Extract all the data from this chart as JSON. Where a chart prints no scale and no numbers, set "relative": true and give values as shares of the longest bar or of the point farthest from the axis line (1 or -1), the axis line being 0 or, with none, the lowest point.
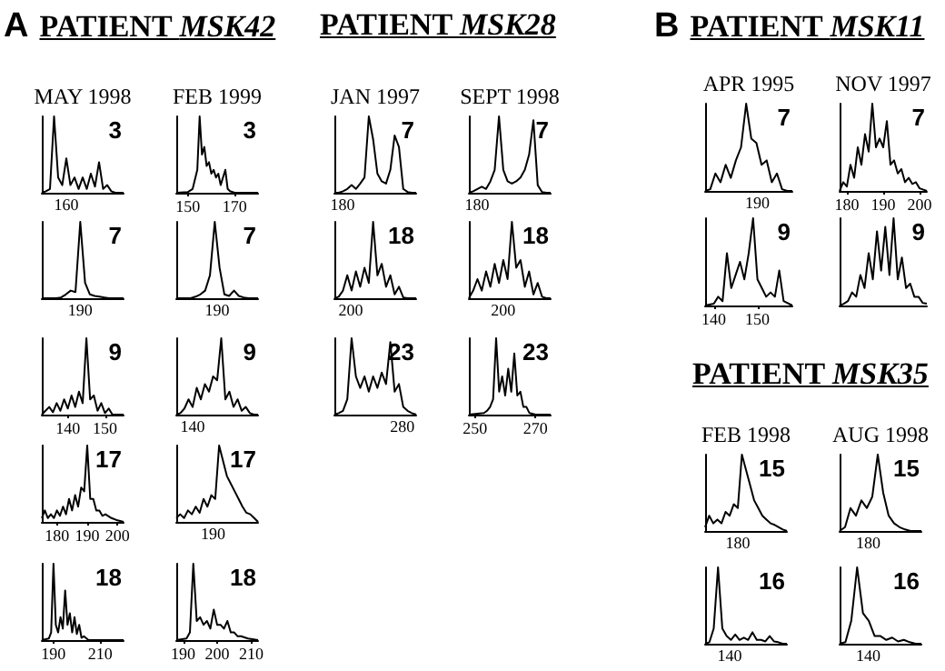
{
  "chart_data": [
    {
      "type": "other",
      "title": "PATIENT MSK42",
      "annotations": [
        "A"
      ]
    },
    {
      "type": "other",
      "title": "PATIENT MSK28"
    },
    {
      "type": "other",
      "title": "PATIENT MSK11",
      "annotations": [
        "B"
      ]
    },
    {
      "type": "line",
      "title": "MAY 1998",
      "annotations": [
        "3",
        "160"
      ],
      "relative": true,
      "tick_labels": false,
      "color": "#000000",
      "categories": [
        null,
        null,
        null,
        null,
        null,
        null,
        null,
        null,
        null,
        null,
        null,
        null,
        null,
        null,
        null,
        null,
        null,
        null,
        null,
        null,
        null
      ],
      "values": [
        0,
        0.02,
        0.05,
        1,
        0.2,
        0.1,
        0.45,
        0.1,
        0.2,
        0.05,
        0.2,
        0.05,
        0.25,
        0.08,
        0.4,
        0.05,
        0.1,
        0.02,
        0,
        0,
        0
      ]
    },
    {
      "type": "line",
      "title": "FEB 1999",
      "annotations": [
        "3"
      ],
      "relative": true,
      "tick_labels": "x",
      "color": "#000000",
      "xlim": [
        145,
        180
      ],
      "xticks": [
        150,
        170
      ],
      "x": [
        145,
        150,
        152,
        154,
        155,
        156,
        157,
        158,
        159,
        160,
        161,
        162,
        163,
        164,
        166,
        167,
        168,
        170,
        180
      ],
      "values": [
        0,
        0.01,
        0.05,
        0.3,
        1,
        0.5,
        0.6,
        0.35,
        0.4,
        0.25,
        0.3,
        0.2,
        0.25,
        0.1,
        0.3,
        0.05,
        0.02,
        0,
        0
      ]
    },
    {
      "type": "line",
      "title": "JAN 1997",
      "annotations": [
        "7",
        "180"
      ],
      "relative": true,
      "tick_labels": false,
      "color": "#000000",
      "categories": [
        null,
        null,
        null,
        null,
        null,
        null,
        null,
        null,
        null,
        null,
        null,
        null,
        null,
        null,
        null,
        null,
        null,
        null,
        null,
        null
      ],
      "values": [
        0,
        0,
        0.02,
        0.05,
        0.1,
        0.05,
        0.12,
        0.2,
        1,
        0.7,
        0.25,
        0.15,
        0.12,
        0.3,
        0.75,
        0.6,
        0.05,
        0.01,
        0,
        0
      ]
    },
    {
      "type": "line",
      "title": "SEPT 1998",
      "annotations": [
        "7",
        "180"
      ],
      "relative": true,
      "tick_labels": false,
      "color": "#000000",
      "categories": [
        null,
        null,
        null,
        null,
        null,
        null,
        null,
        null,
        null,
        null,
        null,
        null,
        null,
        null,
        null,
        null,
        null,
        null,
        null,
        null
      ],
      "values": [
        0,
        0.02,
        0.05,
        0.08,
        0.05,
        0.15,
        0.3,
        1,
        0.3,
        0.15,
        0.12,
        0.15,
        0.2,
        0.3,
        0.5,
        0.95,
        0.1,
        0.01,
        0,
        0
      ]
    },
    {
      "type": "line",
      "annotations": [
        "7",
        "190"
      ],
      "relative": true,
      "tick_labels": false,
      "color": "#000000",
      "categories": [
        null,
        null,
        null,
        null,
        null,
        null,
        null,
        null,
        null,
        null,
        null,
        null,
        null,
        null,
        null,
        null,
        null,
        null
      ],
      "values": [
        0,
        0,
        0,
        0,
        0.01,
        0.05,
        0.1,
        0.08,
        1,
        0.2,
        0.05,
        0.03,
        0.02,
        0.01,
        0,
        0,
        0,
        0
      ]
    },
    {
      "type": "line",
      "annotations": [
        "7",
        "190"
      ],
      "relative": true,
      "tick_labels": false,
      "color": "#000000",
      "categories": [
        null,
        null,
        null,
        null,
        null,
        null,
        null,
        null,
        null,
        null,
        null,
        null,
        null,
        null,
        null,
        null,
        null,
        null
      ],
      "values": [
        0,
        0,
        0,
        0,
        0.02,
        0.05,
        0.1,
        0.3,
        1,
        0.4,
        0.05,
        0.03,
        0.1,
        0.03,
        0.01,
        0,
        0,
        0
      ]
    },
    {
      "type": "line",
      "annotations": [
        "18",
        "200"
      ],
      "relative": true,
      "tick_labels": false,
      "color": "#000000",
      "categories": [
        null,
        null,
        null,
        null,
        null,
        null,
        null,
        null,
        null,
        null,
        null,
        null,
        null,
        null,
        null,
        null,
        null,
        null,
        null,
        null
      ],
      "values": [
        0,
        0.02,
        0.1,
        0.3,
        0.1,
        0.35,
        0.15,
        0.4,
        0.2,
        1,
        0.3,
        0.45,
        0.15,
        0.3,
        0.05,
        0.15,
        0.01,
        0,
        0,
        0
      ]
    },
    {
      "type": "line",
      "annotations": [
        "18",
        "200"
      ],
      "relative": true,
      "tick_labels": false,
      "color": "#000000",
      "categories": [
        null,
        null,
        null,
        null,
        null,
        null,
        null,
        null,
        null,
        null,
        null,
        null,
        null,
        null,
        null,
        null,
        null,
        null,
        null,
        null
      ],
      "values": [
        0,
        0.1,
        0.25,
        0.1,
        0.35,
        0.15,
        0.45,
        0.2,
        0.5,
        0.25,
        1,
        0.4,
        0.5,
        0.15,
        0.35,
        0.05,
        0.2,
        0.02,
        0,
        0
      ]
    },
    {
      "type": "line",
      "annotations": [
        "9"
      ],
      "relative": true,
      "tick_labels": "x",
      "color": "#000000",
      "xlim": [
        133,
        155
      ],
      "xticks": [
        140,
        150
      ],
      "x": [
        133,
        134,
        135,
        136,
        137,
        138,
        139,
        140,
        141,
        142,
        143,
        144,
        145,
        146,
        147,
        148,
        149,
        150,
        151,
        152,
        155
      ],
      "values": [
        0,
        0.05,
        0.1,
        0.03,
        0.15,
        0.05,
        0.2,
        0.08,
        0.25,
        0.1,
        0.3,
        0.15,
        1,
        0.2,
        0.25,
        0.05,
        0.15,
        0.02,
        0.08,
        0,
        0
      ]
    },
    {
      "type": "line",
      "annotations": [
        "9",
        "140"
      ],
      "relative": true,
      "tick_labels": false,
      "color": "#000000",
      "categories": [
        null,
        null,
        null,
        null,
        null,
        null,
        null,
        null,
        null,
        null,
        null,
        null,
        null,
        null,
        null,
        null,
        null,
        null,
        null,
        null,
        null
      ],
      "values": [
        0,
        0.02,
        0.08,
        0.2,
        0.1,
        0.35,
        0.2,
        0.4,
        0.3,
        0.5,
        0.45,
        1,
        0.2,
        0.3,
        0.1,
        0.2,
        0.05,
        0.1,
        0.02,
        0,
        0
      ]
    },
    {
      "type": "line",
      "annotations": [
        "23",
        "280"
      ],
      "relative": true,
      "tick_labels": false,
      "color": "#000000",
      "categories": [
        null,
        null,
        null,
        null,
        null,
        null,
        null,
        null,
        null,
        null,
        null,
        null,
        null,
        null,
        null,
        null,
        null,
        null,
        null,
        null
      ],
      "values": [
        0,
        0.02,
        0.05,
        0.2,
        1,
        0.5,
        0.35,
        0.5,
        0.3,
        0.5,
        0.35,
        0.55,
        0.4,
        0.95,
        0.3,
        0.4,
        0.1,
        0.05,
        0.02,
        0
      ]
    },
    {
      "type": "line",
      "annotations": [
        "23"
      ],
      "relative": true,
      "tick_labels": "x",
      "color": "#000000",
      "xlim": [
        248,
        275
      ],
      "xticks": [
        250,
        270
      ],
      "x": [
        248,
        253,
        254,
        255,
        256,
        257,
        258,
        259,
        260,
        261,
        262,
        263,
        264,
        265,
        266,
        267,
        268,
        270,
        275
      ],
      "values": [
        0,
        0.02,
        0.05,
        0.1,
        0.2,
        1,
        0.3,
        0.5,
        0.25,
        0.6,
        0.3,
        0.8,
        0.25,
        0.3,
        0.1,
        0.1,
        0.02,
        0,
        0
      ]
    },
    {
      "type": "line",
      "annotations": [
        "17"
      ],
      "relative": true,
      "tick_labels": "x",
      "color": "#000000",
      "xlim": [
        175,
        202
      ],
      "xticks": [
        180,
        190,
        200
      ],
      "x": [
        175,
        176,
        177,
        178,
        179,
        180,
        181,
        182,
        183,
        184,
        185,
        186,
        187,
        188,
        189,
        190,
        191,
        192,
        193,
        194,
        195,
        196,
        198,
        200,
        202
      ],
      "values": [
        0.05,
        0.15,
        0.05,
        0.1,
        0.05,
        0.15,
        0.08,
        0.2,
        0.1,
        0.3,
        0.15,
        0.35,
        0.2,
        0.45,
        0.4,
        1,
        0.3,
        0.3,
        0.15,
        0.15,
        0.08,
        0.1,
        0.05,
        0.02,
        0
      ]
    },
    {
      "type": "line",
      "annotations": [
        "17",
        "190"
      ],
      "relative": true,
      "tick_labels": false,
      "color": "#000000",
      "categories": [
        null,
        null,
        null,
        null,
        null,
        null,
        null,
        null,
        null,
        null,
        null,
        null,
        null,
        null,
        null,
        null,
        null,
        null,
        null,
        null,
        null,
        null
      ],
      "values": [
        0.05,
        0.1,
        0.05,
        0.15,
        0.1,
        0.2,
        0.12,
        0.3,
        0.2,
        0.35,
        0.3,
        1,
        0.8,
        0.6,
        0.5,
        0.4,
        0.3,
        0.2,
        0.12,
        0.1,
        0.05,
        0
      ]
    },
    {
      "type": "line",
      "annotations": [
        "18"
      ],
      "relative": true,
      "tick_labels": "x",
      "color": "#000000",
      "xlim": [
        185,
        220
      ],
      "xticks": [
        190,
        210
      ],
      "x": [
        185,
        188,
        189,
        190,
        191,
        192,
        193,
        194,
        195,
        196,
        197,
        198,
        199,
        200,
        201,
        202,
        203,
        205,
        220
      ],
      "values": [
        0,
        0.02,
        0.1,
        1,
        0.2,
        0.1,
        0.3,
        0.15,
        0.65,
        0.2,
        0.35,
        0.1,
        0.3,
        0.08,
        0.2,
        0.03,
        0.05,
        0,
        0
      ]
    },
    {
      "type": "line",
      "annotations": [
        "18"
      ],
      "relative": true,
      "tick_labels": "x",
      "color": "#000000",
      "xlim": [
        188,
        212
      ],
      "xticks": [
        190,
        200,
        210
      ],
      "x": [
        188,
        191,
        192,
        193,
        194,
        195,
        196,
        197,
        198,
        199,
        200,
        201,
        202,
        203,
        204,
        205,
        206,
        207,
        209,
        212
      ],
      "values": [
        0,
        0.02,
        0.1,
        1,
        0.25,
        0.3,
        0.2,
        0.25,
        0.15,
        0.4,
        0.2,
        0.2,
        0.15,
        0.25,
        0.1,
        0.1,
        0.05,
        0.05,
        0.02,
        0
      ]
    },
    {
      "type": "line",
      "title": "APR 1995",
      "annotations": [
        "7",
        "190"
      ],
      "relative": true,
      "tick_labels": false,
      "color": "#000000",
      "categories": [
        null,
        null,
        null,
        null,
        null,
        null,
        null,
        null,
        null,
        null,
        null,
        null,
        null,
        null,
        null,
        null,
        null,
        null
      ],
      "values": [
        0,
        0.02,
        0.2,
        0.1,
        0.3,
        0.15,
        0.35,
        0.5,
        1,
        0.6,
        0.55,
        0.3,
        0.35,
        0.1,
        0.2,
        0.02,
        0,
        0
      ]
    },
    {
      "type": "line",
      "title": "NOV 1997",
      "annotations": [
        "7"
      ],
      "relative": true,
      "tick_labels": "x",
      "color": "#000000",
      "xlim": [
        178,
        202
      ],
      "xticks": [
        180,
        190,
        200
      ],
      "x": [
        178,
        179,
        180,
        181,
        182,
        183,
        184,
        185,
        186,
        187,
        188,
        189,
        190,
        191,
        192,
        193,
        194,
        195,
        196,
        197,
        198,
        199,
        200,
        202
      ],
      "values": [
        0,
        0.1,
        0.05,
        0.3,
        0.15,
        0.5,
        0.3,
        0.65,
        0.45,
        1,
        0.5,
        0.6,
        0.5,
        0.8,
        0.3,
        0.35,
        0.2,
        0.25,
        0.1,
        0.15,
        0.08,
        0.1,
        0.03,
        0
      ]
    },
    {
      "type": "line",
      "annotations": [
        "9"
      ],
      "relative": true,
      "tick_labels": "x",
      "color": "#000000",
      "xlim": [
        138,
        158
      ],
      "xticks": [
        140,
        150
      ],
      "x": [
        138,
        140,
        141,
        142,
        143,
        144,
        145,
        146,
        147,
        148,
        149,
        150,
        151,
        152,
        153,
        154,
        155,
        156,
        158
      ],
      "values": [
        0,
        0.02,
        0.1,
        0.05,
        0.6,
        0.2,
        0.35,
        0.5,
        0.3,
        0.6,
        1,
        0.3,
        0.2,
        0.1,
        0.15,
        0.1,
        0.4,
        0.05,
        0
      ]
    },
    {
      "type": "line",
      "annotations": [
        "9"
      ],
      "relative": true,
      "tick_labels": false,
      "color": "#000000",
      "categories": [
        null,
        null,
        null,
        null,
        null,
        null,
        null,
        null,
        null,
        null,
        null,
        null,
        null,
        null,
        null,
        null,
        null,
        null,
        null,
        null,
        null,
        null
      ],
      "values": [
        0,
        0.02,
        0.05,
        0.15,
        0.1,
        0.35,
        0.2,
        0.6,
        0.3,
        0.85,
        0.4,
        0.9,
        0.35,
        1,
        0.3,
        0.55,
        0.2,
        0.25,
        0.1,
        0.1,
        0.03,
        0.02
      ]
    },
    {
      "type": "other",
      "title": "PATIENT MSK35"
    },
    {
      "type": "line",
      "title": "FEB 1998",
      "annotations": [
        "15",
        "180"
      ],
      "relative": true,
      "tick_labels": false,
      "color": "#000000",
      "categories": [
        null,
        null,
        null,
        null,
        null,
        null,
        null,
        null,
        null,
        null,
        null,
        null,
        null,
        null,
        null,
        null,
        null,
        null,
        null,
        null,
        null
      ],
      "values": [
        0.05,
        0.2,
        0.1,
        0.15,
        0.1,
        0.25,
        0.2,
        0.35,
        0.3,
        1,
        0.8,
        0.6,
        0.4,
        0.3,
        0.2,
        0.15,
        0.1,
        0.08,
        0.05,
        0.02,
        0
      ]
    },
    {
      "type": "line",
      "title": "AUG 1998",
      "annotations": [
        "15",
        "180"
      ],
      "relative": true,
      "tick_labels": false,
      "color": "#000000",
      "categories": [
        null,
        null,
        null,
        null,
        null,
        null,
        null,
        null,
        null,
        null,
        null,
        null,
        null,
        null,
        null,
        null
      ],
      "values": [
        0,
        0.05,
        0.3,
        0.2,
        0.4,
        0.3,
        0.45,
        1,
        0.5,
        0.2,
        0.1,
        0.05,
        0.02,
        0,
        0,
        0
      ]
    },
    {
      "type": "line",
      "annotations": [
        "16",
        "140"
      ],
      "relative": true,
      "tick_labels": false,
      "color": "#000000",
      "categories": [
        null,
        null,
        null,
        null,
        null,
        null,
        null,
        null,
        null,
        null,
        null,
        null,
        null,
        null,
        null,
        null,
        null,
        null,
        null,
        null
      ],
      "values": [
        0,
        0.02,
        0.2,
        1,
        0.2,
        0.1,
        0.05,
        0.12,
        0.05,
        0.08,
        0.05,
        0.15,
        0.05,
        0.05,
        0.03,
        0.1,
        0.03,
        0.02,
        0,
        0
      ]
    },
    {
      "type": "line",
      "annotations": [
        "16",
        "140"
      ],
      "relative": true,
      "tick_labels": false,
      "color": "#000000",
      "categories": [
        null,
        null,
        null,
        null,
        null,
        null,
        null,
        null,
        null,
        null,
        null,
        null,
        null,
        null,
        null
      ],
      "values": [
        0,
        0.02,
        0.3,
        1,
        0.4,
        0.3,
        0.1,
        0.1,
        0.05,
        0.08,
        0.03,
        0.05,
        0.02,
        0,
        0
      ]
    }
  ]
}
